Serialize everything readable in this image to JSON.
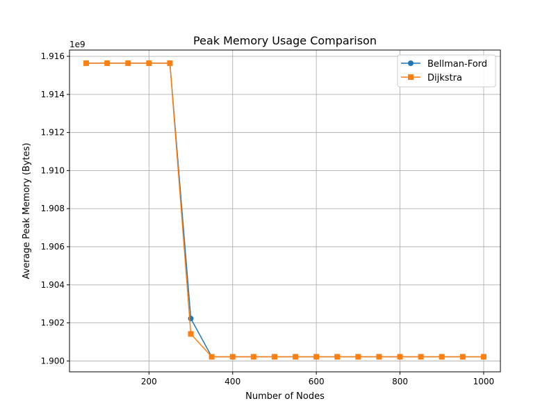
{
  "chart_data": {
    "type": "line",
    "title": "Peak Memory Usage Comparison",
    "xlabel": "Number of Nodes",
    "ylabel": "Average Peak Memory (Bytes)",
    "y_offset_label": "1e9",
    "xlim": [
      10,
      1040
    ],
    "ylim": [
      1.89943,
      1.91633
    ],
    "xticks": [
      200,
      400,
      600,
      800,
      1000
    ],
    "yticks": [
      1.9,
      1.902,
      1.904,
      1.906,
      1.908,
      1.91,
      1.912,
      1.914,
      1.916
    ],
    "ytick_labels": [
      "1.900",
      "1.902",
      "1.904",
      "1.906",
      "1.908",
      "1.910",
      "1.912",
      "1.914",
      "1.916"
    ],
    "grid": true,
    "legend_position": "top-right",
    "x": [
      50,
      100,
      150,
      200,
      250,
      300,
      350,
      400,
      450,
      500,
      550,
      600,
      650,
      700,
      750,
      800,
      850,
      900,
      950,
      1000
    ],
    "series": [
      {
        "name": "Bellman-Ford",
        "color": "#1f77b4",
        "marker": "circle",
        "values": [
          1.91564,
          1.91564,
          1.91564,
          1.91564,
          1.91564,
          1.90223,
          1.90022,
          1.90022,
          1.90022,
          1.90022,
          1.90022,
          1.90022,
          1.90022,
          1.90022,
          1.90022,
          1.90022,
          1.90022,
          1.90022,
          1.90022,
          1.90022
        ]
      },
      {
        "name": "Dijkstra",
        "color": "#ff7f0e",
        "marker": "square",
        "values": [
          1.91564,
          1.91564,
          1.91564,
          1.91564,
          1.91564,
          1.90142,
          1.90022,
          1.90022,
          1.90022,
          1.90022,
          1.90022,
          1.90022,
          1.90022,
          1.90022,
          1.90022,
          1.90022,
          1.90022,
          1.90022,
          1.90022,
          1.90022
        ]
      }
    ]
  }
}
